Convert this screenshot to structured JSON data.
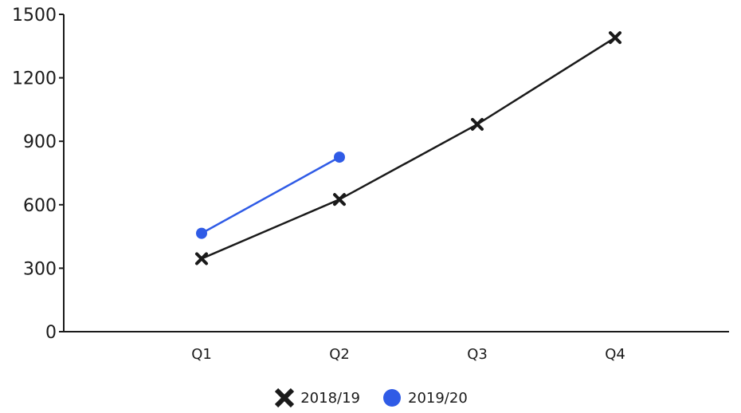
{
  "chart_data": {
    "type": "line",
    "categories": [
      "Q1",
      "Q2",
      "Q3",
      "Q4"
    ],
    "series": [
      {
        "name": "2018/19",
        "values": [
          345,
          625,
          980,
          1390
        ],
        "color": "#1a1a1a",
        "marker": "x"
      },
      {
        "name": "2019/20",
        "values": [
          465,
          825,
          null,
          null
        ],
        "color": "#2f5be6",
        "marker": "circle"
      }
    ],
    "ylim": [
      0,
      1500
    ],
    "yticks": [
      0,
      300,
      600,
      900,
      1200,
      1500
    ],
    "grid": false,
    "legend_position": "bottom"
  }
}
